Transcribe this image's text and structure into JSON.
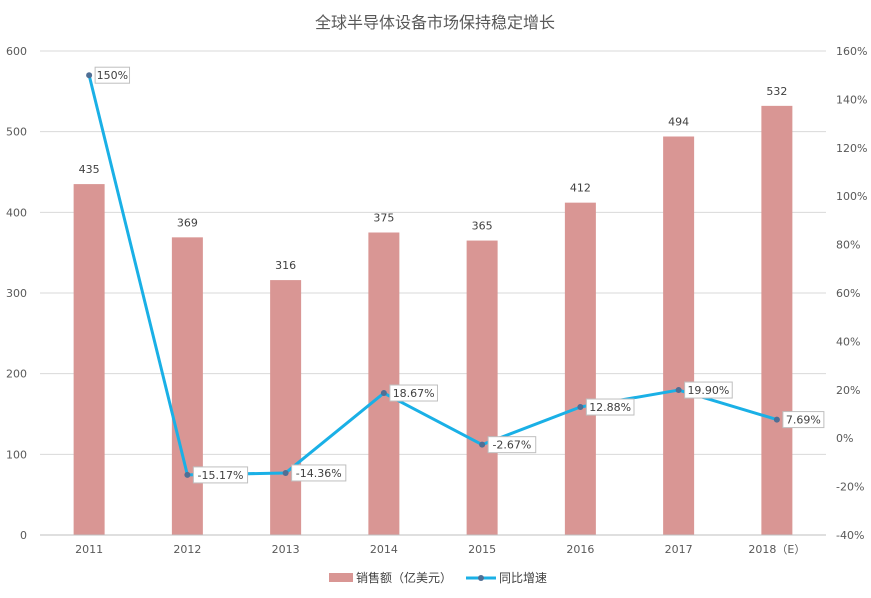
{
  "chart_data": {
    "type": "bar+line",
    "title": "全球半导体设备市场保持稳定增长",
    "categories": [
      "2011",
      "2012",
      "2013",
      "2014",
      "2015",
      "2016",
      "2017",
      "2018（E）"
    ],
    "series": [
      {
        "name": "销售额（亿美元）",
        "type": "bar",
        "axis": "left",
        "values": [
          435,
          369,
          316,
          375,
          365,
          412,
          494,
          532
        ],
        "labels": [
          "435",
          "369",
          "316",
          "375",
          "365",
          "412",
          "494",
          "532"
        ],
        "color": "#d99694"
      },
      {
        "name": "同比增速",
        "type": "line",
        "axis": "right",
        "values": [
          150,
          -15.17,
          -14.36,
          18.67,
          -2.67,
          12.88,
          19.9,
          7.69
        ],
        "labels": [
          "150%",
          "-15.17%",
          "-14.36%",
          "18.67%",
          "-2.67%",
          "12.88%",
          "19.90%",
          "7.69%"
        ],
        "color": "#1ab0e6",
        "marker_color": "#4f6f95"
      }
    ],
    "y_left": {
      "min": 0,
      "max": 600,
      "step": 100,
      "ticks": [
        "0",
        "100",
        "200",
        "300",
        "400",
        "500",
        "600"
      ]
    },
    "y_right": {
      "min": -40,
      "max": 160,
      "step": 20,
      "ticks": [
        "-40%",
        "-20%",
        "0%",
        "20%",
        "40%",
        "60%",
        "80%",
        "100%",
        "120%",
        "140%",
        "160%"
      ]
    },
    "grid": true,
    "legend_position": "bottom-center"
  }
}
